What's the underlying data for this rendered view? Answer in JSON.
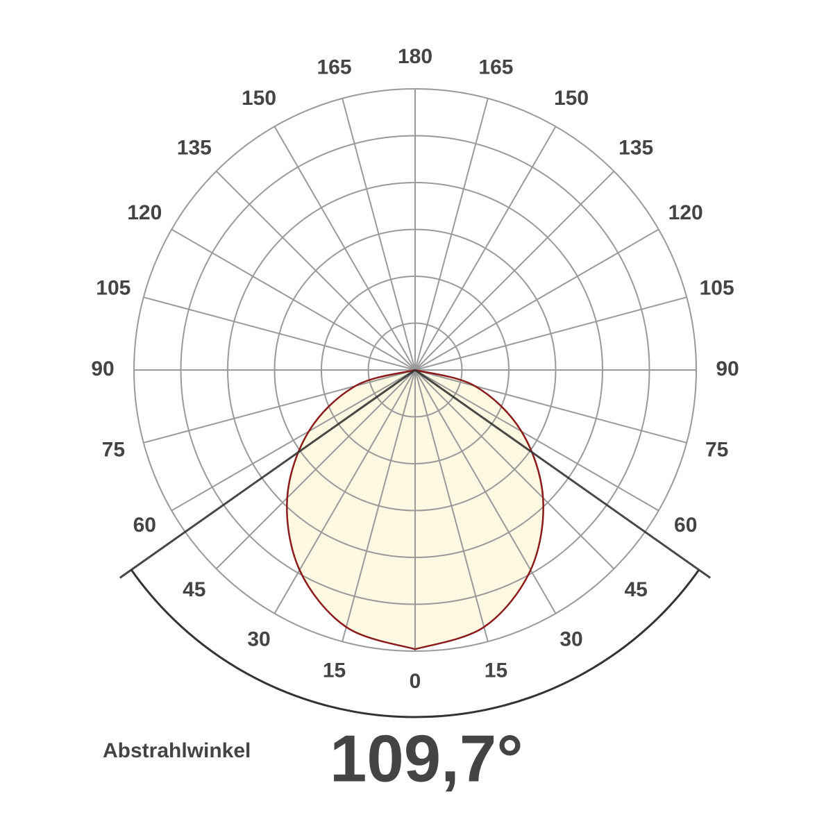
{
  "chart_data": {
    "type": "polar",
    "angle_ticks": [
      0,
      15,
      30,
      45,
      60,
      75,
      90,
      105,
      120,
      135,
      150,
      165,
      180
    ],
    "rlim": [
      0,
      6
    ],
    "rticks": [
      1,
      2,
      3,
      4,
      5,
      6
    ],
    "grid": true,
    "series": [
      {
        "color": "#8b1a1a",
        "angles": [
          0,
          15,
          30,
          45,
          60,
          75,
          90
        ],
        "values": [
          5.96,
          5.68,
          4.93,
          3.86,
          2.62,
          1.32,
          0
        ]
      }
    ],
    "beam_angle": {
      "label": "Abstrahlwinkel",
      "value": 109.7,
      "value_label": "109,7°"
    }
  }
}
